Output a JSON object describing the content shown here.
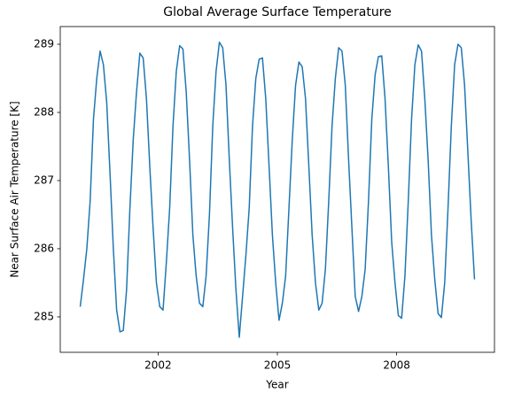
{
  "chart_data": {
    "type": "line",
    "title": "Global Average Surface Temperature",
    "xlabel": "Year",
    "ylabel": "Near Surface Air Temperature [K]",
    "color": "#1f77b4",
    "xlim": [
      1999.54,
      2010.46
    ],
    "xticks": [
      2002,
      2005,
      2008
    ],
    "ylim": [
      284.48,
      289.26
    ],
    "yticks": [
      285,
      286,
      287,
      288,
      289
    ],
    "grid": false,
    "x": [
      2000.042,
      2000.125,
      2000.208,
      2000.292,
      2000.375,
      2000.458,
      2000.542,
      2000.625,
      2000.708,
      2000.792,
      2000.875,
      2000.958,
      2001.042,
      2001.125,
      2001.208,
      2001.292,
      2001.375,
      2001.458,
      2001.542,
      2001.625,
      2001.708,
      2001.792,
      2001.875,
      2001.958,
      2002.042,
      2002.125,
      2002.208,
      2002.292,
      2002.375,
      2002.458,
      2002.542,
      2002.625,
      2002.708,
      2002.792,
      2002.875,
      2002.958,
      2003.042,
      2003.125,
      2003.208,
      2003.292,
      2003.375,
      2003.458,
      2003.542,
      2003.625,
      2003.708,
      2003.792,
      2003.875,
      2003.958,
      2004.042,
      2004.125,
      2004.208,
      2004.292,
      2004.375,
      2004.458,
      2004.542,
      2004.625,
      2004.708,
      2004.792,
      2004.875,
      2004.958,
      2005.042,
      2005.125,
      2005.208,
      2005.292,
      2005.375,
      2005.458,
      2005.542,
      2005.625,
      2005.708,
      2005.792,
      2005.875,
      2005.958,
      2006.042,
      2006.125,
      2006.208,
      2006.292,
      2006.375,
      2006.458,
      2006.542,
      2006.625,
      2006.708,
      2006.792,
      2006.875,
      2006.958,
      2007.042,
      2007.125,
      2007.208,
      2007.292,
      2007.375,
      2007.458,
      2007.542,
      2007.625,
      2007.708,
      2007.792,
      2007.875,
      2007.958,
      2008.042,
      2008.125,
      2008.208,
      2008.292,
      2008.375,
      2008.458,
      2008.542,
      2008.625,
      2008.708,
      2008.792,
      2008.875,
      2008.958,
      2009.042,
      2009.125,
      2009.208,
      2009.292,
      2009.375,
      2009.458,
      2009.542,
      2009.625,
      2009.708,
      2009.792,
      2009.875,
      2009.958
    ],
    "values": [
      285.15,
      285.55,
      286.0,
      286.7,
      287.9,
      288.5,
      288.9,
      288.7,
      288.15,
      287.1,
      286.0,
      285.1,
      284.78,
      284.8,
      285.4,
      286.6,
      287.6,
      288.3,
      288.87,
      288.8,
      288.2,
      287.2,
      286.3,
      285.5,
      285.15,
      285.1,
      285.8,
      286.6,
      287.8,
      288.6,
      288.98,
      288.93,
      288.3,
      287.3,
      286.2,
      285.6,
      285.2,
      285.15,
      285.6,
      286.5,
      287.8,
      288.6,
      289.03,
      288.95,
      288.4,
      287.3,
      286.3,
      285.4,
      284.7,
      285.3,
      285.9,
      286.6,
      287.8,
      288.5,
      288.78,
      288.8,
      288.2,
      287.2,
      286.2,
      285.5,
      284.95,
      285.2,
      285.6,
      286.6,
      287.6,
      288.4,
      288.74,
      288.67,
      288.2,
      287.2,
      286.2,
      285.5,
      285.1,
      285.2,
      285.7,
      286.7,
      287.8,
      288.5,
      288.95,
      288.9,
      288.4,
      287.3,
      286.3,
      285.3,
      285.08,
      285.3,
      285.7,
      286.7,
      287.9,
      288.55,
      288.82,
      288.83,
      288.2,
      287.2,
      286.1,
      285.5,
      285.02,
      284.98,
      285.6,
      286.7,
      287.9,
      288.7,
      288.99,
      288.9,
      288.2,
      287.3,
      286.2,
      285.55,
      285.05,
      284.99,
      285.5,
      286.6,
      287.8,
      288.7,
      289.0,
      288.95,
      288.4,
      287.4,
      286.4,
      285.55
    ]
  }
}
